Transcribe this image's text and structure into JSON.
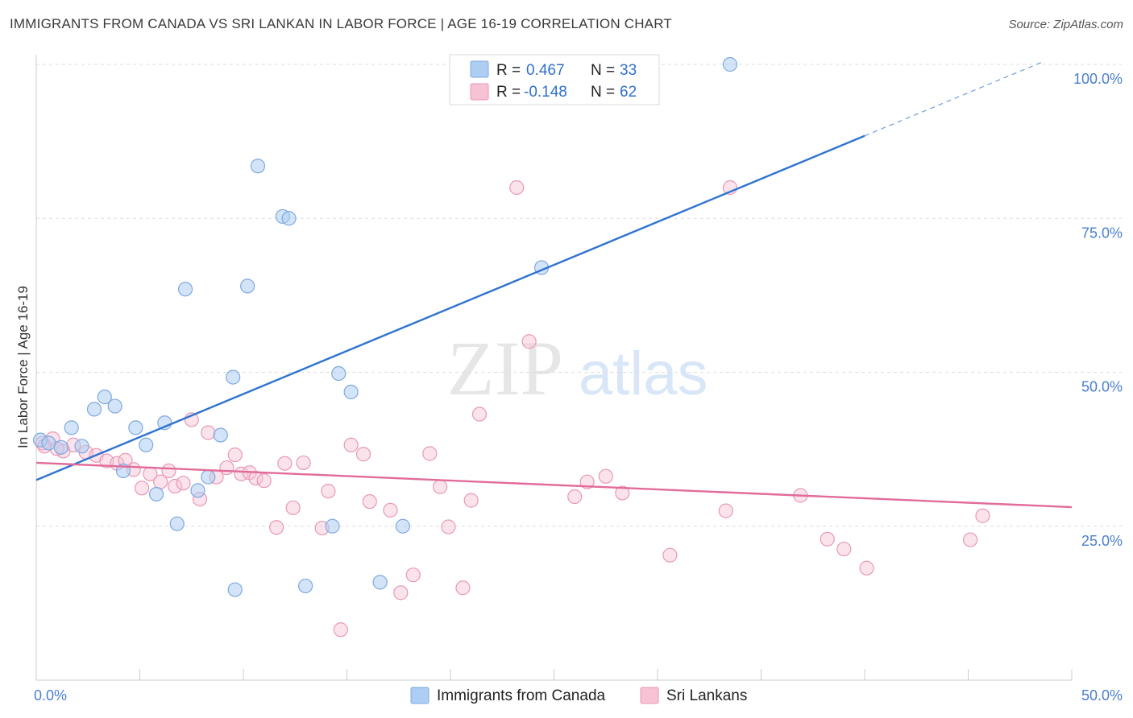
{
  "title": "IMMIGRANTS FROM CANADA VS SRI LANKAN IN LABOR FORCE | AGE 16-19 CORRELATION CHART",
  "source": "Source: ZipAtlas.com",
  "watermark": {
    "zip": "ZIP",
    "atlas": "atlas"
  },
  "colors": {
    "blue": "#2f74d0",
    "blue_fill": "#aecdf2",
    "pink": "#e26b99",
    "pink_fill": "#f6c2d4",
    "grid": "#dddddd",
    "tick_text": "#4a7fd0"
  },
  "legend": {
    "r_label": "R =",
    "n_label": "N =",
    "rows": [
      {
        "r": "0.467",
        "n": "33"
      },
      {
        "r": "-0.148",
        "n": "62"
      }
    ]
  },
  "chart_data": {
    "type": "scatter",
    "title": "IMMIGRANTS FROM CANADA VS SRI LANKAN IN LABOR FORCE | AGE 16-19 CORRELATION CHART",
    "xlabel": "",
    "ylabel": "In Labor Force | Age 16-19",
    "xlim": [
      0,
      50
    ],
    "ylim": [
      0,
      100
    ],
    "x_tick_labels": [
      "0.0%",
      "50.0%"
    ],
    "y_ticks": [
      25,
      50,
      75,
      100
    ],
    "y_tick_labels": [
      "25.0%",
      "50.0%",
      "75.0%",
      "100.0%"
    ],
    "grid": true,
    "legend_position": "top-center",
    "series": [
      {
        "name": "Immigrants from Canada",
        "color": "#2f74d0",
        "r": 0.467,
        "n": 33,
        "trend": {
          "x0": 0,
          "y0": 32.5,
          "x1": 40,
          "y1": 88.4,
          "dash_to_x": 48.6
        },
        "points": [
          [
            0.2,
            39.0
          ],
          [
            0.6,
            38.5
          ],
          [
            1.2,
            37.8
          ],
          [
            1.7,
            41.0
          ],
          [
            2.2,
            38.0
          ],
          [
            2.8,
            44.0
          ],
          [
            3.3,
            46.0
          ],
          [
            3.8,
            44.5
          ],
          [
            4.2,
            34.0
          ],
          [
            4.8,
            41.0
          ],
          [
            5.3,
            38.2
          ],
          [
            5.8,
            30.2
          ],
          [
            6.2,
            41.8
          ],
          [
            6.8,
            25.4
          ],
          [
            7.2,
            63.5
          ],
          [
            7.8,
            30.8
          ],
          [
            8.3,
            33.0
          ],
          [
            8.9,
            39.8
          ],
          [
            9.5,
            49.2
          ],
          [
            9.6,
            14.7
          ],
          [
            10.2,
            64.0
          ],
          [
            10.7,
            83.5
          ],
          [
            11.9,
            75.3
          ],
          [
            12.2,
            75.0
          ],
          [
            13.0,
            15.3
          ],
          [
            14.3,
            25.0
          ],
          [
            14.6,
            49.8
          ],
          [
            15.2,
            46.8
          ],
          [
            16.6,
            15.9
          ],
          [
            17.7,
            25.0
          ],
          [
            20.6,
            100.0
          ],
          [
            24.4,
            67.0
          ],
          [
            33.5,
            100.0
          ]
        ]
      },
      {
        "name": "Sri Lankans",
        "color": "#e26b99",
        "r": -0.148,
        "n": 62,
        "trend": {
          "x0": 0,
          "y0": 35.3,
          "x1": 50,
          "y1": 28.1
        },
        "points": [
          [
            0.3,
            38.5
          ],
          [
            0.8,
            39.2
          ],
          [
            1.3,
            37.2
          ],
          [
            1.8,
            38.2
          ],
          [
            2.4,
            37.0
          ],
          [
            2.9,
            36.5
          ],
          [
            3.4,
            35.6
          ],
          [
            3.9,
            35.2
          ],
          [
            4.3,
            35.7
          ],
          [
            4.7,
            34.2
          ],
          [
            5.1,
            31.2
          ],
          [
            5.5,
            33.5
          ],
          [
            6.0,
            32.2
          ],
          [
            6.4,
            34.0
          ],
          [
            6.7,
            31.5
          ],
          [
            7.1,
            32.0
          ],
          [
            7.5,
            42.3
          ],
          [
            7.9,
            29.4
          ],
          [
            8.3,
            40.2
          ],
          [
            8.7,
            33.0
          ],
          [
            9.2,
            34.5
          ],
          [
            9.6,
            36.6
          ],
          [
            9.9,
            33.5
          ],
          [
            10.3,
            33.7
          ],
          [
            10.6,
            32.8
          ],
          [
            11.0,
            32.4
          ],
          [
            11.6,
            24.8
          ],
          [
            12.0,
            35.2
          ],
          [
            12.4,
            28.0
          ],
          [
            12.9,
            35.3
          ],
          [
            13.8,
            24.7
          ],
          [
            14.1,
            30.7
          ],
          [
            14.7,
            8.2
          ],
          [
            15.2,
            38.2
          ],
          [
            15.8,
            36.7
          ],
          [
            16.1,
            29.0
          ],
          [
            17.1,
            27.6
          ],
          [
            17.6,
            14.2
          ],
          [
            18.2,
            17.1
          ],
          [
            19.0,
            36.8
          ],
          [
            19.5,
            31.4
          ],
          [
            19.9,
            24.9
          ],
          [
            20.6,
            15.0
          ],
          [
            21.0,
            29.2
          ],
          [
            21.4,
            43.2
          ],
          [
            23.2,
            80.0
          ],
          [
            23.8,
            55.0
          ],
          [
            26.0,
            29.8
          ],
          [
            26.6,
            32.2
          ],
          [
            27.5,
            33.1
          ],
          [
            28.3,
            30.4
          ],
          [
            30.6,
            20.3
          ],
          [
            33.3,
            27.5
          ],
          [
            33.5,
            80.0
          ],
          [
            36.9,
            30.0
          ],
          [
            38.2,
            22.9
          ],
          [
            39.0,
            21.3
          ],
          [
            40.1,
            18.2
          ],
          [
            45.1,
            22.8
          ],
          [
            45.7,
            26.7
          ],
          [
            0.4,
            38.0
          ],
          [
            1.0,
            37.6
          ]
        ]
      }
    ]
  }
}
